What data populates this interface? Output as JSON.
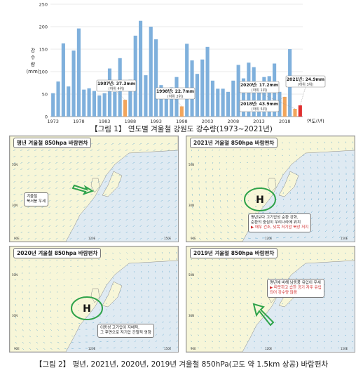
{
  "chart_data": {
    "type": "bar",
    "title": "",
    "ylabel": "강수량 (mm)",
    "ylabel_chars": [
      "강",
      "수",
      "량",
      "(mm)"
    ],
    "xlabel": "연도(년)",
    "ylim": [
      0,
      250
    ],
    "yticks": [
      0,
      50,
      100,
      150,
      200,
      250
    ],
    "xticks": [
      "1973",
      "1978",
      "1983",
      "1988",
      "1993",
      "1998",
      "2003",
      "2008",
      "2013",
      "2018"
    ],
    "categories": [
      "1973",
      "1974",
      "1975",
      "1976",
      "1977",
      "1978",
      "1979",
      "1980",
      "1981",
      "1982",
      "1983",
      "1984",
      "1985",
      "1986",
      "1987",
      "1988",
      "1989",
      "1990",
      "1991",
      "1992",
      "1993",
      "1994",
      "1995",
      "1996",
      "1997",
      "1998",
      "1999",
      "2000",
      "2001",
      "2002",
      "2003",
      "2004",
      "2005",
      "2006",
      "2007",
      "2008",
      "2009",
      "2010",
      "2011",
      "2012",
      "2013",
      "2014",
      "2015",
      "2016",
      "2017",
      "2018",
      "2019",
      "2020",
      "2021"
    ],
    "values": [
      52,
      78,
      163,
      67,
      147,
      196,
      60,
      63,
      57,
      47,
      52,
      107,
      55,
      130,
      37.3,
      82,
      180,
      213,
      92,
      200,
      172,
      70,
      50,
      65,
      88,
      22.7,
      162,
      125,
      95,
      127,
      155,
      80,
      62,
      62,
      55,
      80,
      115,
      85,
      120,
      110,
      55,
      88,
      90,
      118,
      55,
      43.9,
      150,
      17.2,
      24.9
    ],
    "highlight_colors": {
      "1987": "#f2a55c",
      "1998": "#f2a55c",
      "2018": "#f2a55c",
      "2020": "#f2a55c",
      "2021": "#e03030"
    },
    "bar_color": "#7fb0dc",
    "annotations": [
      {
        "year": "1987",
        "line1": "1987년: 37.3mm",
        "line2": "(하위 4위)"
      },
      {
        "year": "1998",
        "line1": "1998년: 22.7mm",
        "line2": "(하위 2위)"
      },
      {
        "year": "2020",
        "line1": "2020년: 17.2mm",
        "line2": "(하위 1위)"
      },
      {
        "year": "2018",
        "line1": "2018년: 43.9mm",
        "line2": "(하위 5위)"
      },
      {
        "year": "2021",
        "line1": "2021년: 24.9mm",
        "line2": "(하위 3위)"
      }
    ]
  },
  "captions": {
    "fig1": "【그림 1】 연도별 겨울철 강원도 강수량(1973~2021년)",
    "fig2": "【그림 2】 평년, 2021년, 2020년, 2019년 겨울철 850hPa(고도 약 1.5km 상공) 바람편차"
  },
  "panels": [
    {
      "title": "평년 겨울철 850hpa 바람편차",
      "notes": [
        "겨울철",
        "북서풍 우세"
      ],
      "red": []
    },
    {
      "title": "2021년 겨울철 850hpa 바람편차",
      "notes": [
        "평년보다 고기압성 순환 강화,",
        "순환의 중심이 우리나라에 위치"
      ],
      "red": [
        "▶ 매우 건조, 낮목 저기압 북상 저지"
      ],
      "H": "H"
    },
    {
      "title": "2020년 겨울철 850hpa 바람편차",
      "notes": [
        "이동성 고기압이 지배적,",
        "그 후면으로 저기압 간헐적 영향"
      ],
      "red": [],
      "H": "H"
    },
    {
      "title": "2019년 겨울철 850hpa 바람편차",
      "notes": [
        "평년에 비해 남동풍 유입이 우세"
      ],
      "red": [
        "▶ 따뜻하고 습한 공기 자주 유입",
        "되어 강수량 많음"
      ]
    }
  ],
  "map_ticks": {
    "lat": [
      "50N",
      "30N"
    ],
    "lon": [
      "90E",
      "120E",
      "150E"
    ]
  },
  "colors": {
    "land": "#f7f6d8",
    "sea": "#dfeaf2",
    "vector": "#5fa8cf",
    "green": "#2fa34a",
    "red": "#d12b2b"
  }
}
